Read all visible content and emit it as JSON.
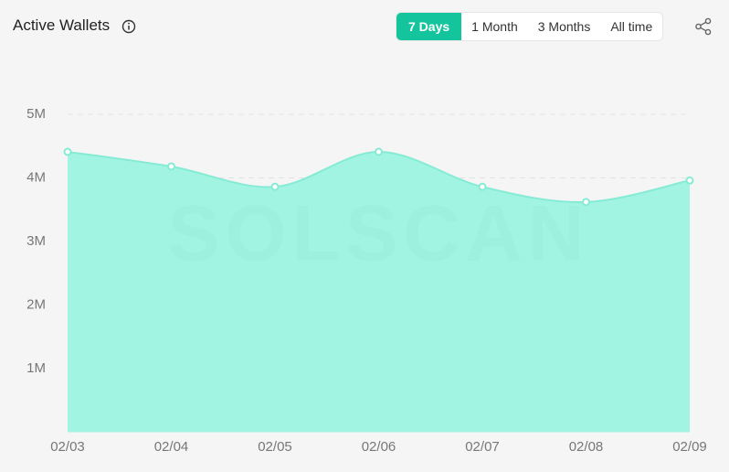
{
  "chart_data": {
    "type": "area",
    "title": "Active Wallets",
    "watermark": "SOLSCAN",
    "categories": [
      "02/03",
      "02/04",
      "02/05",
      "02/06",
      "02/07",
      "02/08",
      "02/09"
    ],
    "values": [
      4410000,
      4180000,
      3860000,
      4410000,
      3860000,
      3620000,
      3960000
    ],
    "color": "#a2f4e2",
    "line_color": "#86ebd4",
    "ylim": [
      0,
      5000000
    ],
    "yticks": [
      {
        "value": 1000000,
        "label": "1M"
      },
      {
        "value": 2000000,
        "label": "2M"
      },
      {
        "value": 3000000,
        "label": "3M"
      },
      {
        "value": 4000000,
        "label": "4M"
      },
      {
        "value": 5000000,
        "label": "5M"
      }
    ],
    "grid": true
  },
  "controls": {
    "ranges": [
      "7 Days",
      "1 Month",
      "3 Months",
      "All time"
    ],
    "active": 0
  }
}
